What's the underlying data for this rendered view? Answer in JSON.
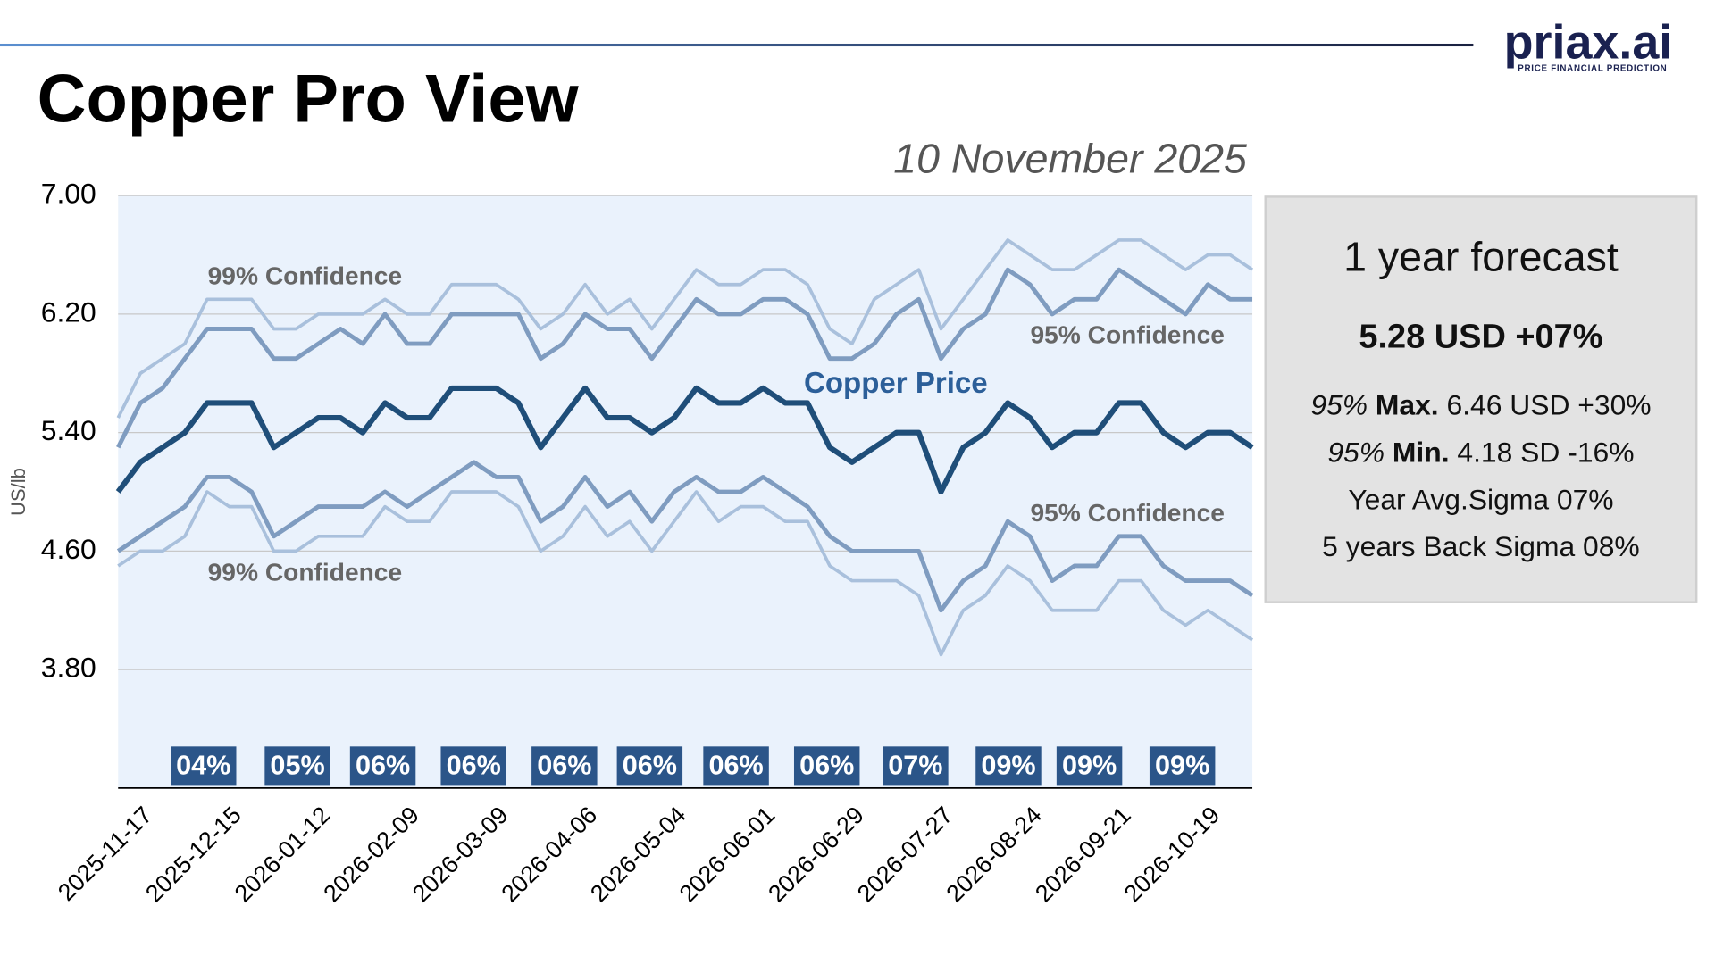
{
  "header": {
    "logo": "priax.ai",
    "tagline": "PRICE FINANCIAL PREDICTION",
    "title": "Copper Pro View",
    "date": "10 November 2025"
  },
  "chart_data": {
    "type": "line",
    "ylabel": "US/lb",
    "ylim": [
      3.0,
      7.0
    ],
    "yticks": [
      {
        "value": 3.8,
        "label": "3.80"
      },
      {
        "value": 4.6,
        "label": "4.60"
      },
      {
        "value": 5.4,
        "label": "5.40"
      },
      {
        "value": 6.2,
        "label": "6.20"
      },
      {
        "value": 7.0,
        "label": "7.00"
      }
    ],
    "grid": true,
    "background": "#eaf2fc",
    "categories": [
      null,
      "2025-11-17",
      null,
      null,
      null,
      "2025-12-15",
      null,
      null,
      null,
      "2026-01-12",
      null,
      null,
      null,
      "2026-02-09",
      null,
      null,
      null,
      "2026-03-09",
      null,
      null,
      null,
      "2026-04-06",
      null,
      null,
      null,
      "2026-05-04",
      null,
      null,
      null,
      "2026-06-01",
      null,
      null,
      null,
      "2026-06-29",
      null,
      null,
      null,
      "2026-07-27",
      null,
      null,
      null,
      "2026-08-24",
      null,
      null,
      null,
      "2026-09-21",
      null,
      null,
      null,
      "2026-10-19",
      null,
      null
    ],
    "series": [
      {
        "name": "99% Confidence",
        "color": "#a9c0dc",
        "width": 3,
        "values": [
          5.5,
          5.8,
          5.9,
          6.0,
          6.3,
          6.3,
          6.3,
          6.1,
          6.1,
          6.2,
          6.2,
          6.2,
          6.3,
          6.2,
          6.2,
          6.4,
          6.4,
          6.4,
          6.3,
          6.1,
          6.2,
          6.4,
          6.2,
          6.3,
          6.1,
          6.3,
          6.5,
          6.4,
          6.4,
          6.5,
          6.5,
          6.4,
          6.1,
          6.0,
          6.3,
          6.4,
          6.5,
          6.1,
          6.3,
          6.5,
          6.7,
          6.6,
          6.5,
          6.5,
          6.6,
          6.7,
          6.7,
          6.6,
          6.5,
          6.6,
          6.6,
          6.5
        ]
      },
      {
        "name": "95% Confidence",
        "color": "#7f9cc0",
        "width": 4,
        "values": [
          5.3,
          5.6,
          5.7,
          5.9,
          6.1,
          6.1,
          6.1,
          5.9,
          5.9,
          6.0,
          6.1,
          6.0,
          6.2,
          6.0,
          6.0,
          6.2,
          6.2,
          6.2,
          6.2,
          5.9,
          6.0,
          6.2,
          6.1,
          6.1,
          5.9,
          6.1,
          6.3,
          6.2,
          6.2,
          6.3,
          6.3,
          6.2,
          5.9,
          5.9,
          6.0,
          6.2,
          6.3,
          5.9,
          6.1,
          6.2,
          6.5,
          6.4,
          6.2,
          6.3,
          6.3,
          6.5,
          6.4,
          6.3,
          6.2,
          6.4,
          6.3,
          6.3
        ]
      },
      {
        "name": "Copper Price",
        "color": "#1f4e79",
        "width": 5,
        "values": [
          5.0,
          5.2,
          5.3,
          5.4,
          5.6,
          5.6,
          5.6,
          5.3,
          5.4,
          5.5,
          5.5,
          5.4,
          5.6,
          5.5,
          5.5,
          5.7,
          5.7,
          5.7,
          5.6,
          5.3,
          5.5,
          5.7,
          5.5,
          5.5,
          5.4,
          5.5,
          5.7,
          5.6,
          5.6,
          5.7,
          5.6,
          5.6,
          5.3,
          5.2,
          5.3,
          5.4,
          5.4,
          5.0,
          5.3,
          5.4,
          5.6,
          5.5,
          5.3,
          5.4,
          5.4,
          5.6,
          5.6,
          5.4,
          5.3,
          5.4,
          5.4,
          5.3
        ]
      },
      {
        "name": "95% Confidence",
        "color": "#7f9cc0",
        "width": 4,
        "values": [
          4.6,
          4.7,
          4.8,
          4.9,
          5.1,
          5.1,
          5.0,
          4.7,
          4.8,
          4.9,
          4.9,
          4.9,
          5.0,
          4.9,
          5.0,
          5.1,
          5.2,
          5.1,
          5.1,
          4.8,
          4.9,
          5.1,
          4.9,
          5.0,
          4.8,
          5.0,
          5.1,
          5.0,
          5.0,
          5.1,
          5.0,
          4.9,
          4.7,
          4.6,
          4.6,
          4.6,
          4.6,
          4.2,
          4.4,
          4.5,
          4.8,
          4.7,
          4.4,
          4.5,
          4.5,
          4.7,
          4.7,
          4.5,
          4.4,
          4.4,
          4.4,
          4.3
        ]
      },
      {
        "name": "99% Confidence",
        "color": "#a9c0dc",
        "width": 3,
        "values": [
          4.5,
          4.6,
          4.6,
          4.7,
          5.0,
          4.9,
          4.9,
          4.6,
          4.6,
          4.7,
          4.7,
          4.7,
          4.9,
          4.8,
          4.8,
          5.0,
          5.0,
          5.0,
          4.9,
          4.6,
          4.7,
          4.9,
          4.7,
          4.8,
          4.6,
          4.8,
          5.0,
          4.8,
          4.9,
          4.9,
          4.8,
          4.8,
          4.5,
          4.4,
          4.4,
          4.4,
          4.3,
          3.9,
          4.2,
          4.3,
          4.5,
          4.4,
          4.2,
          4.2,
          4.2,
          4.4,
          4.4,
          4.2,
          4.1,
          4.2,
          4.1,
          4.0
        ]
      }
    ],
    "annotations": [
      "04%",
      "05%",
      "06%",
      "06%",
      "06%",
      "06%",
      "06%",
      "06%",
      "07%",
      "09%",
      "09%",
      "09%"
    ]
  },
  "panel": {
    "title": "1 year forecast",
    "headline": "5.28 USD +07%",
    "rows": [
      {
        "level": "95%",
        "label": "Max.",
        "text": "6.46 USD +30%"
      },
      {
        "level": "95%",
        "label": "Min.",
        "text": "4.18 SD -16%"
      }
    ],
    "notes": [
      "Year Avg.Sigma 07%",
      "5 years Back Sigma 08%"
    ]
  }
}
